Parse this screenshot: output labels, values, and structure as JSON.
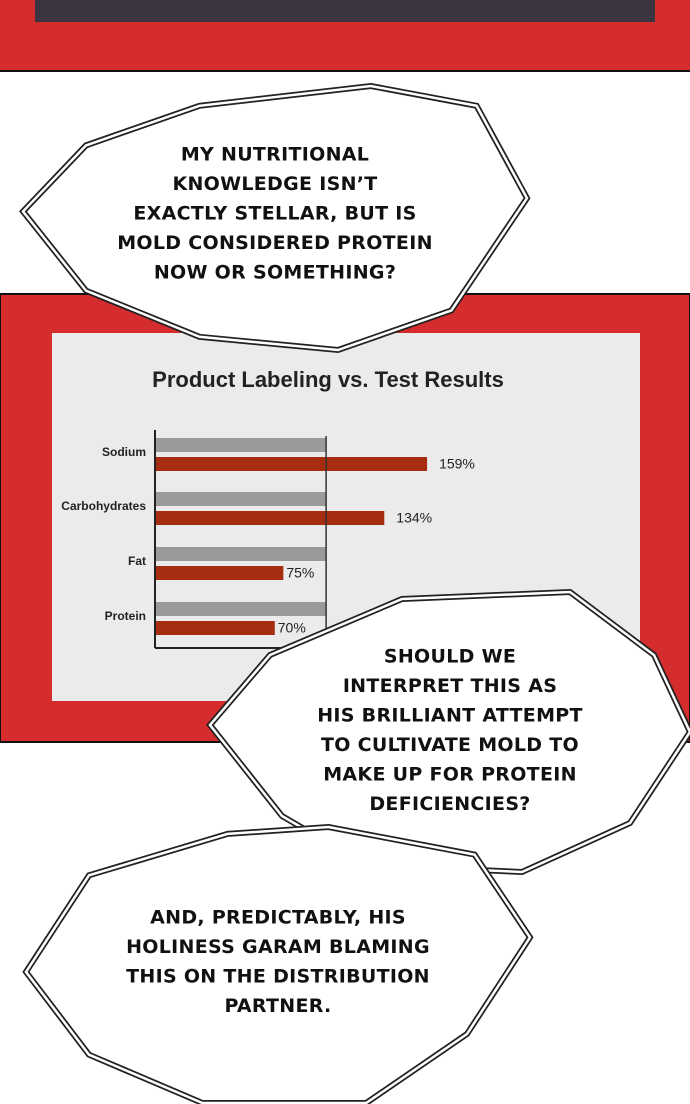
{
  "bubbles": [
    {
      "lines": [
        "MY NUTRITIONAL",
        "KNOWLEDGE ISN’T",
        "EXACTLY STELLAR, BUT IS",
        "MOLD CONSIDERED PROTEIN",
        "NOW OR SOMETHING?"
      ]
    },
    {
      "lines": [
        "SHOULD WE",
        "INTERPRET THIS AS",
        "HIS BRILLIANT ATTEMPT",
        "TO CULTIVATE MOLD TO",
        "MAKE UP FOR PROTEIN",
        "DEFICIENCIES?"
      ]
    },
    {
      "lines": [
        "AND, PREDICTABLY, HIS",
        "HOLINESS GARAM BLAMING",
        "THIS ON THE DISTRIBUTION",
        "PARTNER."
      ]
    }
  ],
  "chart_data": {
    "type": "bar",
    "orientation": "horizontal",
    "title": "Product Labeling vs. Test Results",
    "categories": [
      "Sodium",
      "Carbohydrates",
      "Fat",
      "Protein"
    ],
    "series": [
      {
        "color": "#9a9a9a",
        "values": [
          100,
          100,
          100,
          100
        ]
      },
      {
        "color": "#a52d10",
        "values": [
          159,
          134,
          75,
          70
        ],
        "value_labels": [
          "159%",
          "134%",
          "75%",
          "70%"
        ]
      }
    ],
    "xlim": [
      0,
      180
    ]
  }
}
